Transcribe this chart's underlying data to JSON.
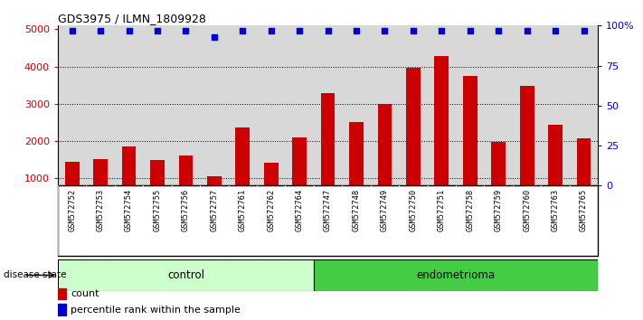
{
  "title": "GDS3975 / ILMN_1809928",
  "samples": [
    "GSM572752",
    "GSM572753",
    "GSM572754",
    "GSM572755",
    "GSM572756",
    "GSM572757",
    "GSM572761",
    "GSM572762",
    "GSM572764",
    "GSM572747",
    "GSM572748",
    "GSM572749",
    "GSM572750",
    "GSM572751",
    "GSM572758",
    "GSM572759",
    "GSM572760",
    "GSM572763",
    "GSM572765"
  ],
  "counts": [
    1450,
    1520,
    1850,
    1480,
    1620,
    1060,
    2370,
    1420,
    2100,
    3280,
    2510,
    3000,
    3970,
    4280,
    3750,
    1980,
    3480,
    2440,
    2080
  ],
  "percentile": [
    97,
    97,
    97,
    97,
    97,
    93,
    97,
    97,
    97,
    97,
    97,
    97,
    97,
    97,
    97,
    97,
    97,
    97,
    97
  ],
  "n_control": 9,
  "n_endometrioma": 10,
  "control_label": "control",
  "endometrioma_label": "endometrioma",
  "disease_state_label": "disease state",
  "legend_count": "count",
  "legend_percentile": "percentile rank within the sample",
  "bar_color": "#cc0000",
  "dot_color": "#0000cc",
  "control_bg": "#ccffcc",
  "endometrioma_bg": "#44cc44",
  "ylim_left": [
    800,
    5100
  ],
  "ylim_right": [
    0,
    100
  ],
  "yticks_left": [
    1000,
    2000,
    3000,
    4000,
    5000
  ],
  "yticks_right": [
    0,
    25,
    50,
    75,
    100
  ],
  "ytick_labels_right": [
    "0",
    "25",
    "50",
    "75",
    "100%"
  ],
  "background_color": "#ffffff",
  "sample_area_color": "#d8d8d8"
}
